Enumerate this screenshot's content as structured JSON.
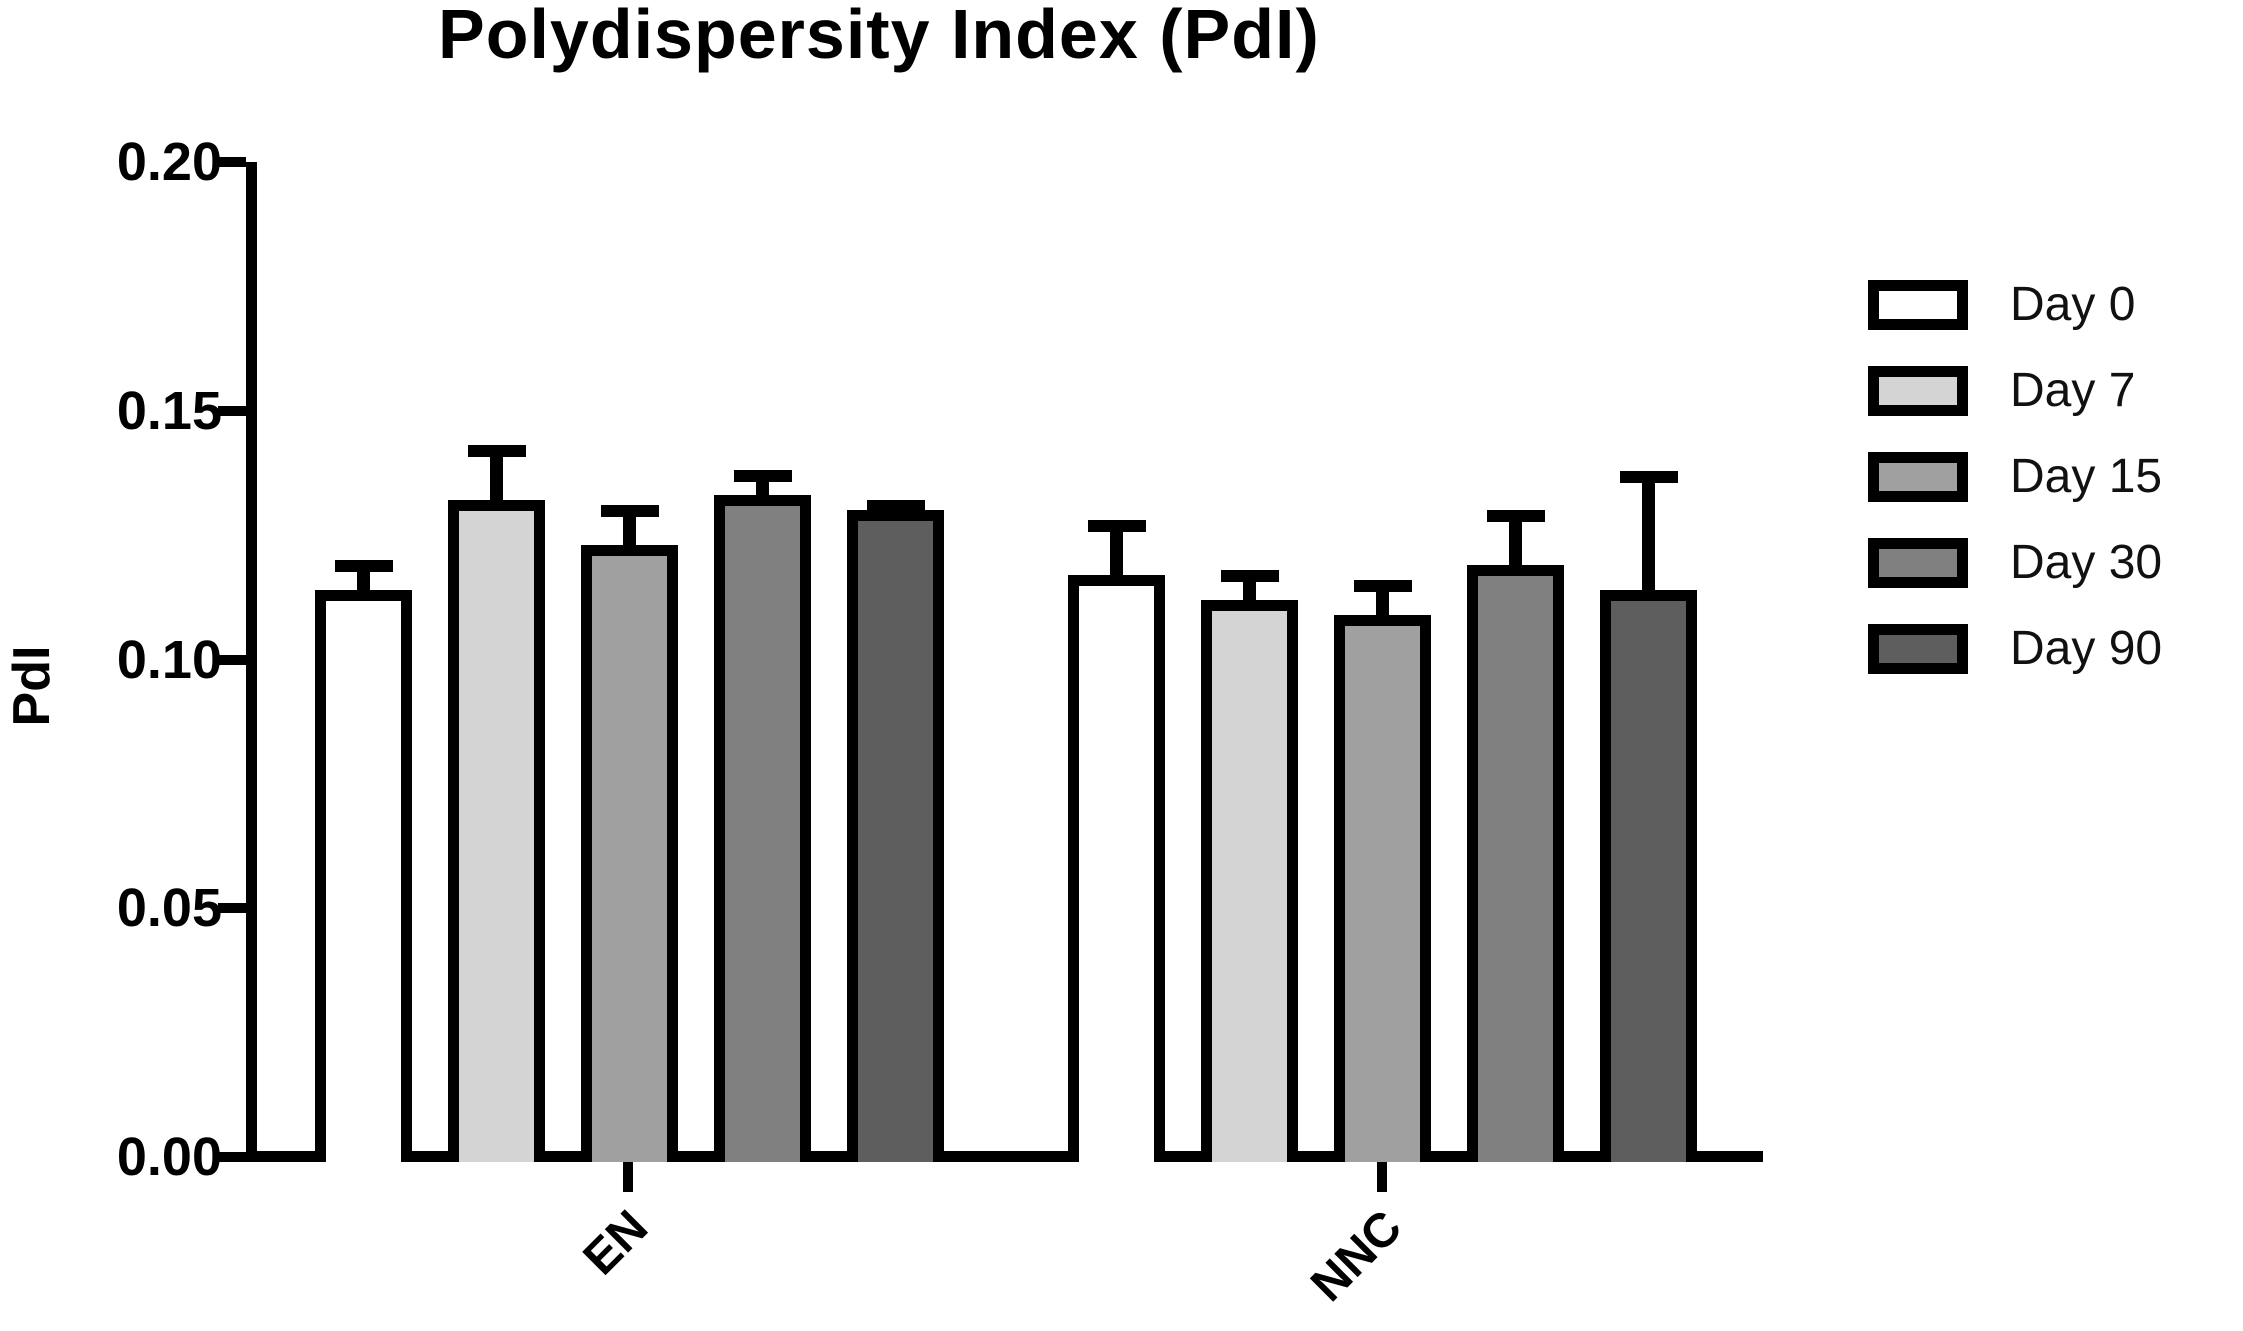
{
  "chart_data": {
    "type": "bar",
    "title": "Polydispersity Index (PdI)",
    "ylabel": "PdI",
    "xlabel": "",
    "ylim": [
      0.0,
      0.2
    ],
    "yticks": [
      "0.00",
      "0.05",
      "0.10",
      "0.15",
      "0.20"
    ],
    "categories": [
      "EN",
      "NNC"
    ],
    "series": [
      {
        "name": "Day 0",
        "fill": "#ffffff",
        "values": [
          0.114,
          0.117
        ],
        "errors_upper": [
          0.006,
          0.011
        ]
      },
      {
        "name": "Day 7",
        "fill": "#d4d4d4",
        "values": [
          0.132,
          0.112
        ],
        "errors_upper": [
          0.011,
          0.006
        ]
      },
      {
        "name": "Day 15",
        "fill": "#a0a0a0",
        "values": [
          0.123,
          0.109
        ],
        "errors_upper": [
          0.008,
          0.007
        ]
      },
      {
        "name": "Day 30",
        "fill": "#808080",
        "values": [
          0.133,
          0.119
        ],
        "errors_upper": [
          0.005,
          0.011
        ]
      },
      {
        "name": "Day 90",
        "fill": "#5e5e5e",
        "values": [
          0.13,
          0.114
        ],
        "errors_upper": [
          0.002,
          0.024
        ]
      }
    ],
    "legend_entries": [
      "Day 0",
      "Day 7",
      "Day 15",
      "Day 30",
      "Day 90"
    ],
    "legend_position": "right",
    "error_bars": "upper only, capped",
    "grid": false,
    "bar_border_color": "#000000",
    "background_color": "#ffffff"
  }
}
